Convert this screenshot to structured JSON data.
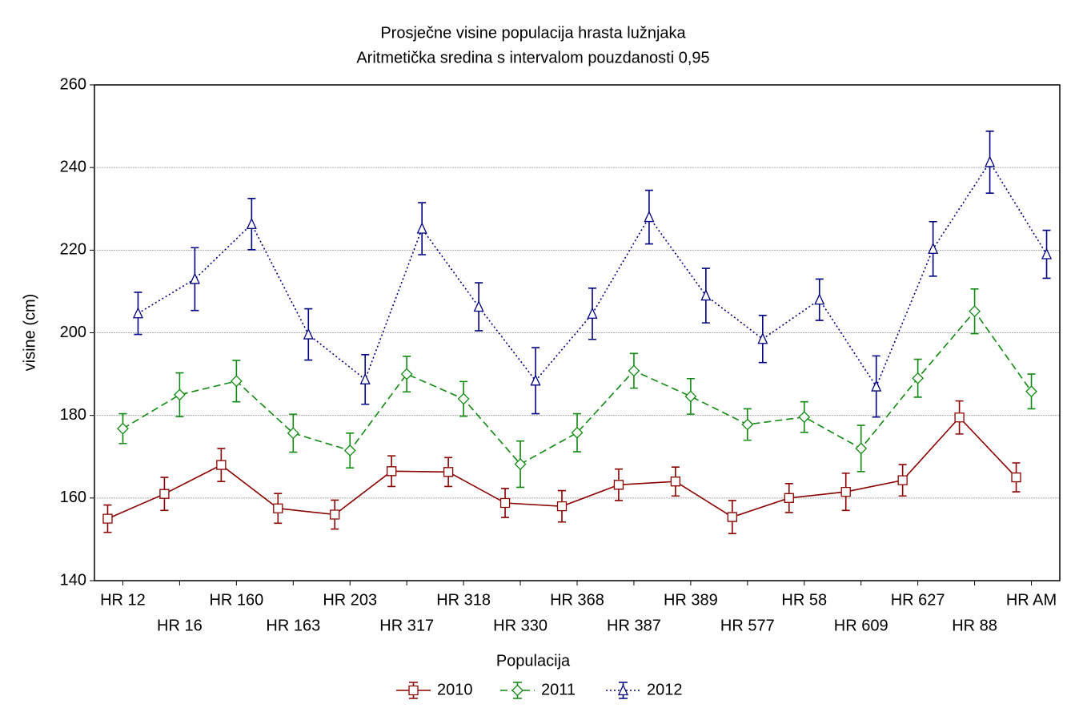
{
  "chart_data": {
    "type": "line",
    "title": "Prosječne visine populacija hrasta lužnjaka",
    "subtitle": "Aritmetička sredina s intervalom pouzdanosti 0,95",
    "x_label": "Populacija",
    "y_label": "visine (cm)",
    "categories": [
      "HR 12",
      "HR 16",
      "HR 160",
      "HR 163",
      "HR 203",
      "HR 317",
      "HR 318",
      "HR 330",
      "HR 368",
      "HR 387",
      "HR 389",
      "HR 577",
      "HR 58",
      "HR 609",
      "HR 627",
      "HR 88",
      "HR AM"
    ],
    "ylim": [
      140,
      260
    ],
    "yticks": [
      140,
      160,
      180,
      200,
      220,
      240,
      260
    ],
    "grid": true,
    "legend": "bottom",
    "series": [
      {
        "name": "2010",
        "color": "#8b0000",
        "dash": "solid",
        "marker": "square",
        "values": [
          155,
          161,
          168,
          157.5,
          156,
          166.5,
          166.3,
          158.8,
          158,
          163.2,
          164,
          155.4,
          160,
          161.5,
          164.3,
          179.5,
          165
        ],
        "errors": [
          3.3,
          4,
          4,
          3.6,
          3.5,
          3.7,
          3.5,
          3.5,
          3.8,
          3.8,
          3.5,
          4,
          3.5,
          4.5,
          3.8,
          4,
          3.5
        ]
      },
      {
        "name": "2011",
        "color": "#108a10",
        "dash": "dashed",
        "marker": "diamond",
        "values": [
          176.8,
          185,
          188.3,
          175.7,
          171.5,
          190,
          184,
          168.2,
          175.8,
          190.8,
          184.6,
          177.8,
          179.6,
          172,
          189,
          205.2,
          185.8
        ],
        "errors": [
          3.6,
          5.3,
          5,
          4.6,
          4.2,
          4.3,
          4.2,
          5.6,
          4.6,
          4.2,
          4.3,
          3.8,
          3.7,
          5.6,
          4.6,
          5.4,
          4.2
        ]
      },
      {
        "name": "2012",
        "color": "#000080",
        "dash": "dotted",
        "marker": "triangle",
        "values": [
          204.7,
          213,
          226.3,
          199.6,
          188.7,
          225.2,
          206.3,
          188.4,
          204.6,
          228,
          209,
          198.5,
          208,
          187,
          220.3,
          241.3,
          219
        ],
        "errors": [
          5.1,
          7.6,
          6.2,
          6.2,
          6,
          6.3,
          5.8,
          8,
          6.2,
          6.5,
          6.6,
          5.7,
          5,
          7.4,
          6.6,
          7.5,
          5.8
        ]
      }
    ]
  }
}
